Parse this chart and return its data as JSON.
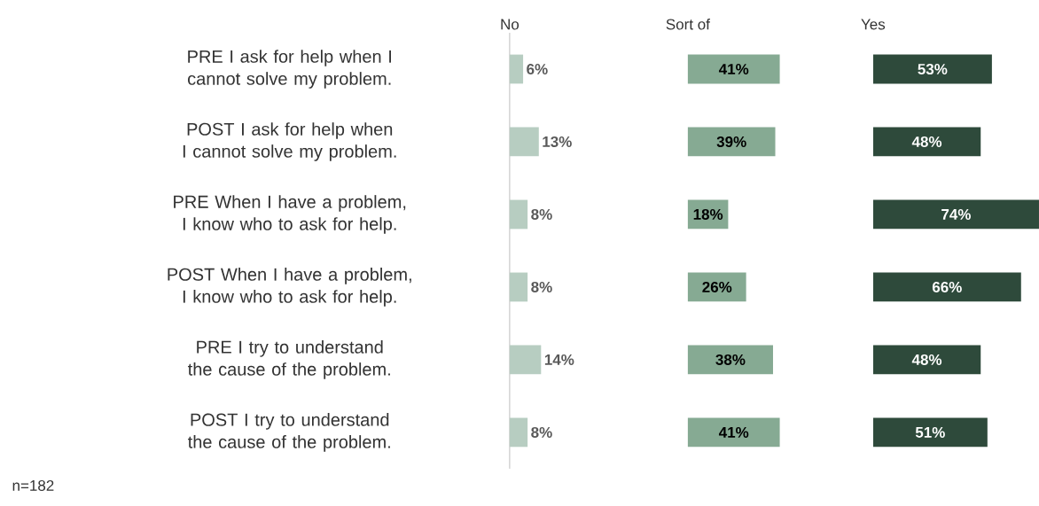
{
  "chart_data": [
    {
      "type": "bar",
      "orientation": "horizontal",
      "title": "No",
      "categories": [
        "PRE I ask for help when I cannot solve my problem.",
        "POST I ask for help when I cannot solve my problem.",
        "PRE When I have a problem, I know who to ask for help.",
        "POST When I have a problem, I know who to ask for help.",
        "PRE I try to understand the cause of the problem.",
        "POST I try to understand the cause of the problem."
      ],
      "values": [
        6,
        13,
        8,
        8,
        14,
        8
      ],
      "value_labels": [
        "6%",
        "13%",
        "8%",
        "8%",
        "14%",
        "8%"
      ],
      "color": "#b7cdc1",
      "tick_labels": "y",
      "annotations": [
        "n=182"
      ]
    },
    {
      "type": "bar",
      "orientation": "horizontal",
      "title": "Sort of",
      "categories": [
        null,
        null,
        null,
        null,
        null,
        null
      ],
      "values": [
        41,
        39,
        18,
        26,
        38,
        41
      ],
      "value_labels": [
        "41%",
        "39%",
        "18%",
        "26%",
        "38%",
        "41%"
      ],
      "color": "#86aa93",
      "tick_labels": false
    },
    {
      "type": "bar",
      "orientation": "horizontal",
      "title": "Yes",
      "categories": [
        null,
        null,
        null,
        null,
        null,
        null
      ],
      "values": [
        53,
        48,
        74,
        66,
        48,
        51
      ],
      "value_labels": [
        "53%",
        "48%",
        "74%",
        "66%",
        "48%",
        "51%"
      ],
      "color": "#2e4a3b",
      "tick_labels": false
    }
  ]
}
